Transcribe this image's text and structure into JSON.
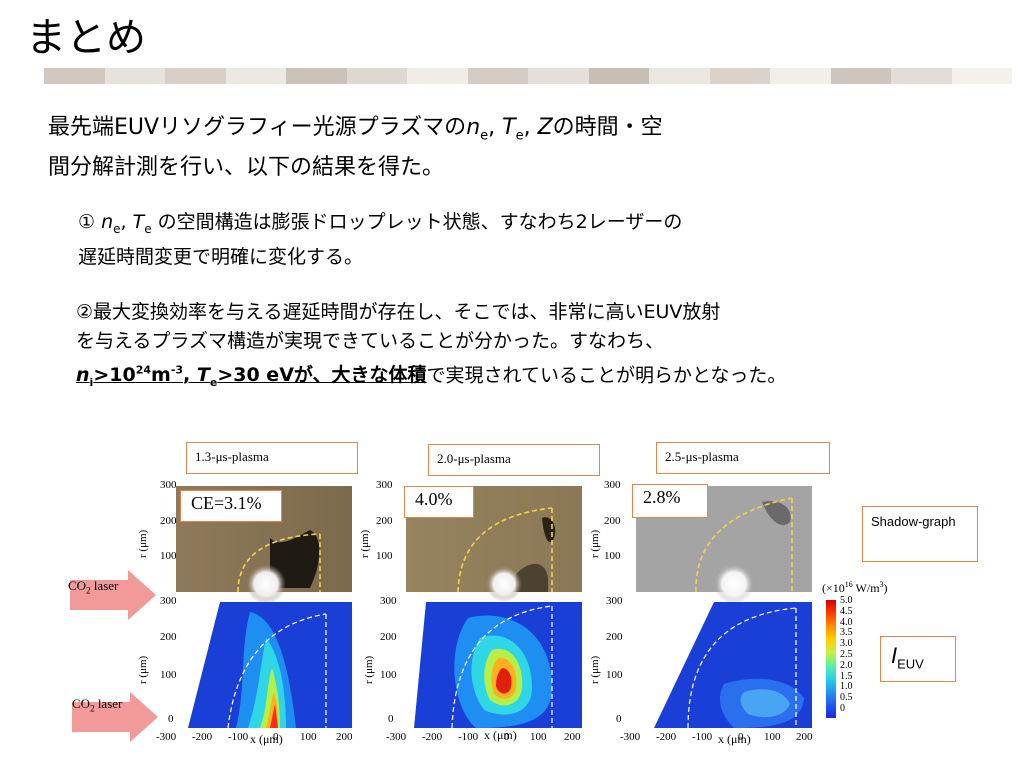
{
  "slide": {
    "title": "まとめ",
    "colors": {
      "title_bar": [
        "#c8c2b8",
        "#ddd8d0",
        "#e8e4de",
        "#d3cdc4",
        "#c0b8ac",
        "#efebe5",
        "#d8d2ca"
      ],
      "accent_box": "#e8844a",
      "arrow": "#f29a9a"
    }
  },
  "summary": {
    "line1_a": "最先端EUVリソグラフィー光源プラズマの",
    "ne": "n",
    "ne_sub": "e",
    "sep1": ", ",
    "te": "T",
    "te_sub": "e",
    "sep2": ", ",
    "z": "Z",
    "line1_b": "の時間・空",
    "line2": "間分解計測を行い、以下の結果を得た。"
  },
  "point1": {
    "num": "①",
    "ne": "n",
    "ne_sub": "e",
    "sep": ", ",
    "te": "T",
    "te_sub": "e",
    "text_a": " の空間構造は膨張ドロップレット状態、すなわち2レーザーの",
    "text_b": "遅延時間変更で明確に変化する。"
  },
  "point2": {
    "num": "②",
    "text_a": "最大変換効率を与える遅延時間が存在し、そこでは、非常に高いEUV放射",
    "text_b": "を与えるプラズマ構造が実現できていることが分かった。すなわち、",
    "ni": "n",
    "ni_sub": "i",
    "gt1": ">10",
    "exp1": "24",
    "unit1": "m",
    "exp2": "-3",
    "sep": ", ",
    "te": "T",
    "te_sub": "e",
    "gt2": ">30 eV",
    "text_c": "が、大きな体積",
    "text_d": "で実現されていることが明らかとなった。"
  },
  "figure": {
    "panels": [
      {
        "label": "1.3-μs-plasma",
        "ce": "CE=3.1%"
      },
      {
        "label": "2.0-μs-plasma",
        "ce": "4.0%"
      },
      {
        "label": "2.5-μs-plasma",
        "ce": "2.8%"
      }
    ],
    "laser_label_top": "CO",
    "laser_label_top_sub": "2",
    "laser_label_top_rest": " laser",
    "laser_label_bottom": "CO",
    "laser_label_bottom_sub": "2",
    "laser_label_bottom_rest": " laser",
    "shadow_label": "Shadow-graph",
    "ieuv_label": "I",
    "ieuv_sub": "EUV",
    "r_axis": "r (μm)",
    "x_axis": "x (μm)",
    "r_ticks": [
      "300",
      "200",
      "100",
      "0"
    ],
    "x_ticks": [
      "-300",
      "-200",
      "-100",
      "0",
      "100",
      "200"
    ],
    "colorbar_title": "(×10",
    "colorbar_exp": "16",
    "colorbar_unit": " W/m",
    "colorbar_unit_exp": "3",
    "colorbar_unit_end": ")",
    "colorbar_ticks": [
      "5.0",
      "4.5",
      "4.0",
      "3.5",
      "3.0",
      "2.5",
      "2.0",
      "1.5",
      "1.0",
      "0.5",
      "0"
    ]
  }
}
